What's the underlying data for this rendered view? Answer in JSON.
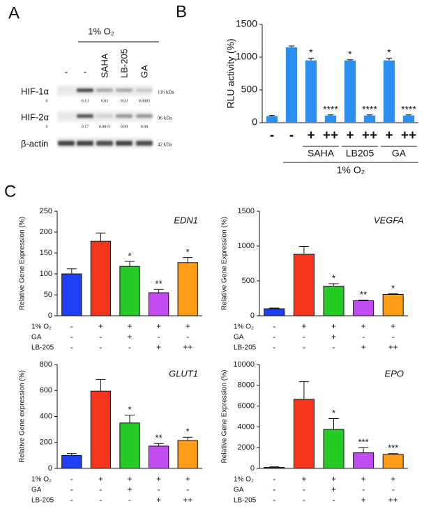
{
  "panel_labels": [
    "A",
    "B",
    "C"
  ],
  "blot": {
    "header": "1% O₂",
    "lanes": [
      "-",
      "-",
      "SAHA",
      "LB-205",
      "GA"
    ],
    "rows": [
      {
        "label": "HIF-1α",
        "size": "116 kDa",
        "quant": [
          "0",
          "0.13",
          "0.03",
          "0.03",
          "0.0003"
        ]
      },
      {
        "label": "HIF-2α",
        "size": "96 kDa",
        "quant": [
          "0",
          "0.17",
          "0.0015",
          "0.09",
          "0.08"
        ]
      },
      {
        "label": "β-actin",
        "size": "42 kDa"
      }
    ]
  },
  "chart_data": [
    {
      "type": "bar",
      "y_label": "RLU activity (%)",
      "color": "#2a8ef0",
      "categories": [
        "-",
        "-",
        "+",
        "++",
        "+",
        "++",
        "+",
        "++"
      ],
      "values": [
        100,
        1150,
        950,
        110,
        950,
        110,
        950,
        110
      ],
      "errors": [
        10,
        20,
        35,
        10,
        10,
        10,
        35,
        10
      ],
      "annotations": [
        null,
        null,
        "*",
        "****",
        "*",
        "****",
        "*",
        "****"
      ],
      "groups": [
        "SAHA",
        "LB205",
        "GA"
      ],
      "group_label": "1% O₂",
      "ylim": [
        0,
        1500
      ],
      "yticks": [
        0,
        500,
        1000,
        1500
      ]
    },
    {
      "type": "bar",
      "title": "EDN1",
      "y_label": "Relative Gene Expression (%)",
      "colors": [
        "#1f3ff2",
        "#f5361c",
        "#26cc26",
        "#c24cf0",
        "#ff9c18"
      ],
      "values": [
        100,
        178,
        118,
        55,
        127
      ],
      "errors": [
        12,
        20,
        12,
        8,
        12
      ],
      "annotations": [
        null,
        null,
        "*",
        "**",
        "*"
      ],
      "conditions": [
        {
          "label": "1% O₂",
          "values": [
            "-",
            "+",
            "+",
            "+",
            "+"
          ]
        },
        {
          "label": "GA",
          "values": [
            "-",
            "-",
            "+",
            "-",
            "-"
          ]
        },
        {
          "label": "LB-205",
          "values": [
            "-",
            "-",
            "-",
            "+",
            "++"
          ]
        }
      ],
      "ylim": [
        0,
        250
      ],
      "yticks": [
        0,
        50,
        100,
        150,
        200,
        250
      ]
    },
    {
      "type": "bar",
      "title": "VEGFA",
      "y_label": "Relative Gene Expression (%)",
      "colors": [
        "#1f3ff2",
        "#f5361c",
        "#26cc26",
        "#c24cf0",
        "#ff9c18"
      ],
      "values": [
        100,
        885,
        425,
        215,
        305
      ],
      "errors": [
        10,
        110,
        35,
        10,
        10
      ],
      "annotations": [
        null,
        null,
        "*",
        "**",
        "*"
      ],
      "conditions": [
        {
          "label": "1% O₂",
          "values": [
            "-",
            "+",
            "+",
            "+",
            "+"
          ]
        },
        {
          "label": "GA",
          "values": [
            "-",
            "-",
            "+",
            "-",
            "-"
          ]
        },
        {
          "label": "LB-205",
          "values": [
            "-",
            "-",
            "-",
            "+",
            "++"
          ]
        }
      ],
      "ylim": [
        0,
        1500
      ],
      "yticks": [
        0,
        500,
        1000,
        1500
      ]
    },
    {
      "type": "bar",
      "title": "GLUT1",
      "y_label": "Relative Gene expression (%)",
      "colors": [
        "#1f3ff2",
        "#f5361c",
        "#26cc26",
        "#c24cf0",
        "#ff9c18"
      ],
      "values": [
        100,
        595,
        350,
        172,
        215
      ],
      "errors": [
        15,
        90,
        60,
        20,
        25
      ],
      "annotations": [
        null,
        null,
        "*",
        "**",
        "*"
      ],
      "conditions": [
        {
          "label": "1% O₂",
          "values": [
            "-",
            "+",
            "+",
            "+",
            "+"
          ]
        },
        {
          "label": "GA",
          "values": [
            "-",
            "-",
            "+",
            "-",
            "-"
          ]
        },
        {
          "label": "LB-205",
          "values": [
            "-",
            "-",
            "-",
            "+",
            "++"
          ]
        }
      ],
      "ylim": [
        0,
        800
      ],
      "yticks": [
        0,
        200,
        400,
        600,
        800
      ]
    },
    {
      "type": "bar",
      "title": "EPO",
      "y_label": "Relative Gene Expression (%)",
      "colors": [
        "#1f3ff2",
        "#f5361c",
        "#26cc26",
        "#c24cf0",
        "#ff9c18"
      ],
      "values": [
        100,
        6650,
        3750,
        1500,
        1350
      ],
      "errors": [
        50,
        1700,
        1050,
        500,
        80
      ],
      "annotations": [
        null,
        null,
        "*",
        "***",
        "***"
      ],
      "conditions": [
        {
          "label": "1% O₂",
          "values": [
            "-",
            "+",
            "+",
            "+",
            "+"
          ]
        },
        {
          "label": "GA",
          "values": [
            "-",
            "-",
            "+",
            "-",
            "-"
          ]
        },
        {
          "label": "LB-205",
          "values": [
            "-",
            "-",
            "-",
            "+",
            "++"
          ]
        }
      ],
      "ylim": [
        0,
        10000
      ],
      "yticks": [
        0,
        2000,
        4000,
        6000,
        8000,
        10000
      ]
    }
  ]
}
